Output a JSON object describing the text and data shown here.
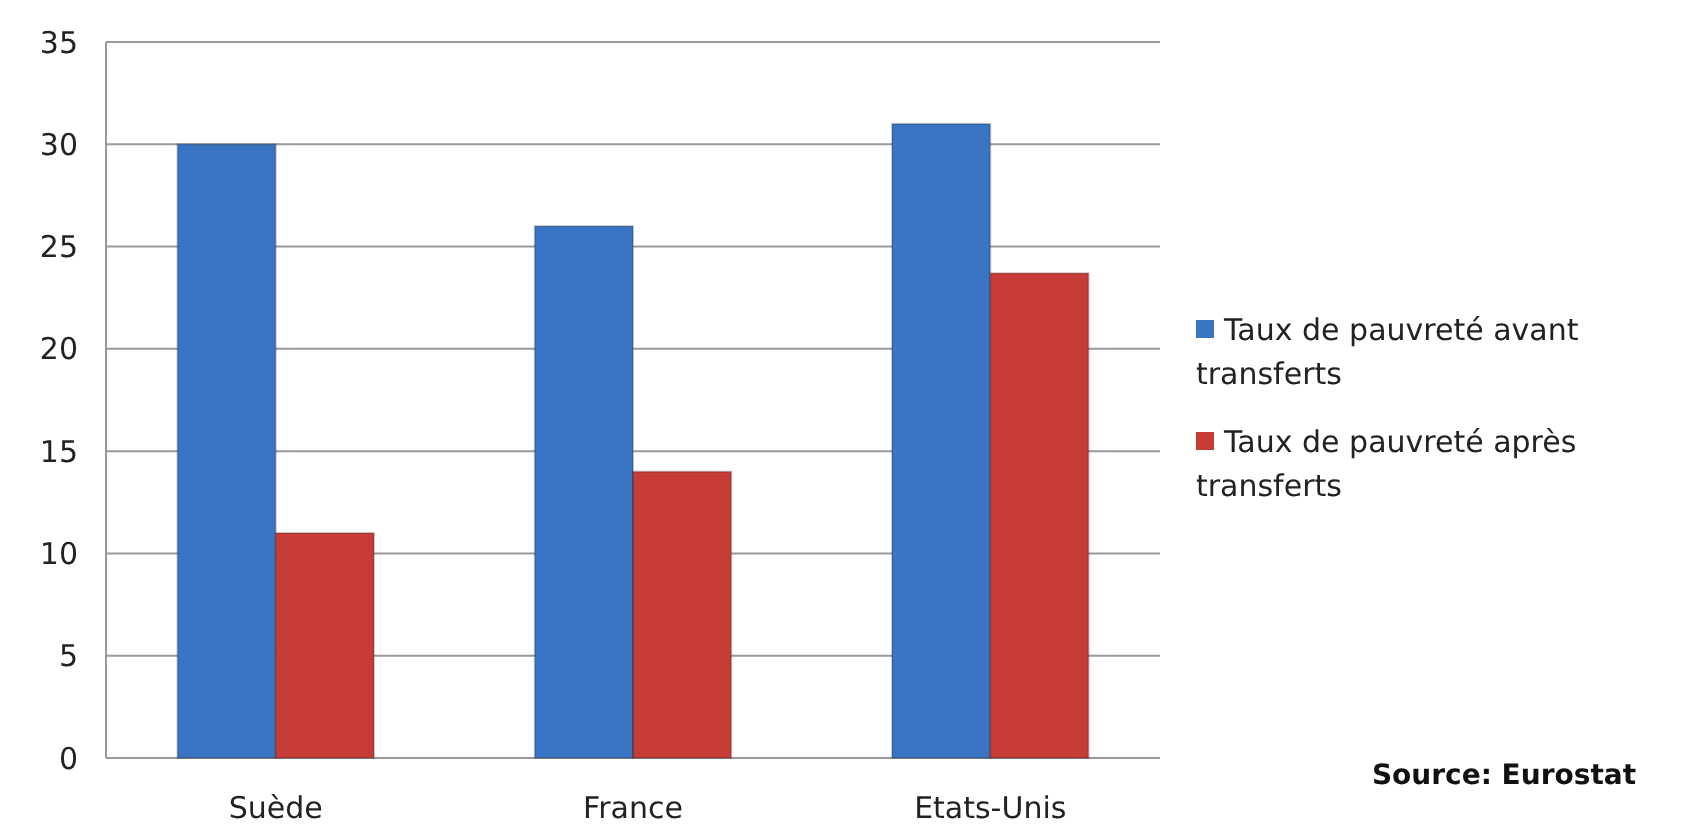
{
  "chart_data": {
    "type": "bar",
    "categories": [
      "Suède",
      "France",
      "Etats-Unis"
    ],
    "series": [
      {
        "name": "Taux de pauvreté avant transferts",
        "color": "#3a75c4",
        "values": [
          30,
          26,
          31
        ]
      },
      {
        "name": "Taux de pauvreté après transferts",
        "color": "#c83c38",
        "values": [
          11,
          14,
          23.7
        ]
      }
    ],
    "ylim": [
      0,
      35
    ],
    "yticks": [
      0,
      5,
      10,
      15,
      20,
      25,
      30,
      35
    ],
    "grid": "y",
    "legend": "right",
    "annotations": [
      "Source: Eurostat"
    ]
  }
}
